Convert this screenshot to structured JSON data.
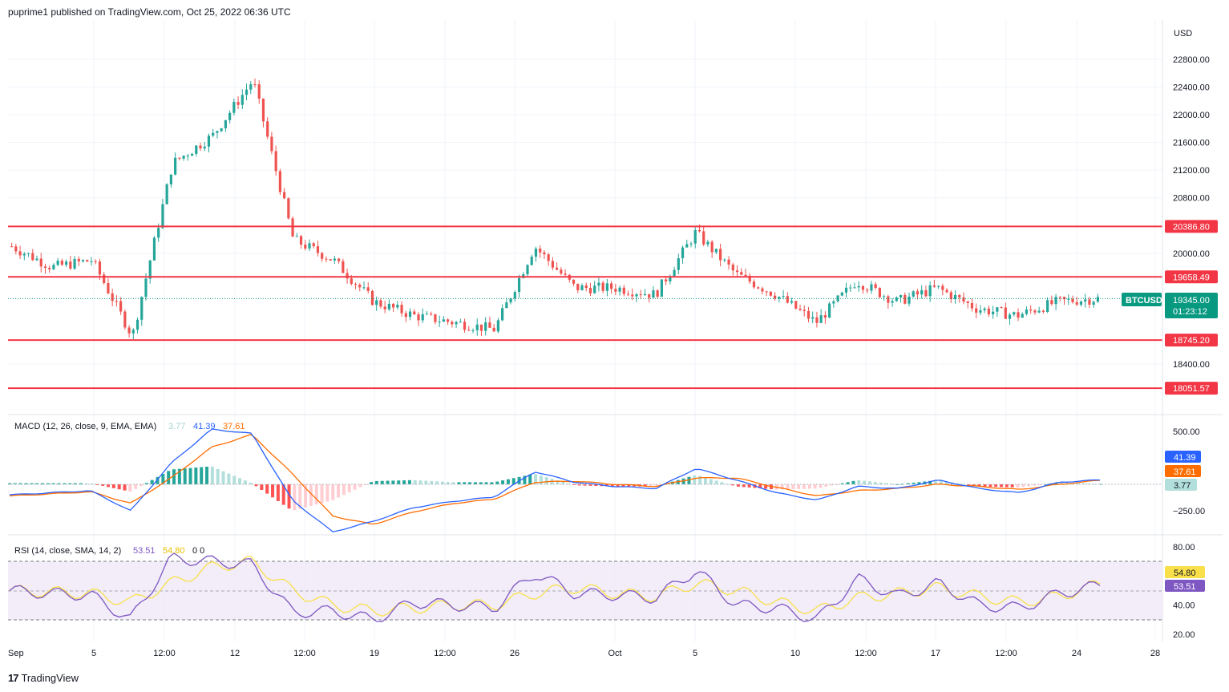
{
  "header": {
    "text": "puprime1 published on TradingView.com, Oct 25, 2022 06:36 UTC"
  },
  "footer": {
    "logo_mark": "17",
    "brand": "TradingView"
  },
  "colors": {
    "up": "#26a69a",
    "down": "#ef5350",
    "level_line": "#f23645",
    "macd_line": "#2962ff",
    "signal_line": "#ff6d00",
    "rsi_line": "#7e57c2",
    "rsi_sma": "#f9e04b",
    "rsi_band": "#ede7f6",
    "price_tag": "#089981"
  },
  "price_axis": {
    "currency": "USD",
    "ticks": [
      "22800.00",
      "22400.00",
      "22000.00",
      "21600.00",
      "21200.00",
      "20800.00",
      "20000.00",
      "18400.00"
    ]
  },
  "levels": [
    {
      "label": "20386.80",
      "value": 20386.8
    },
    {
      "label": "19658.49",
      "value": 19658.49
    },
    {
      "label": "18745.20",
      "value": 18745.2
    },
    {
      "label": "18051.57",
      "value": 18051.57
    }
  ],
  "last_price": {
    "symbol": "BTCUSD",
    "price": "19345.00",
    "countdown": "01:23:12",
    "value": 19345
  },
  "macd": {
    "title": "MACD (12, 26, close, 9, EMA, EMA)",
    "hist_value": "3.77",
    "macd_value": "41.39",
    "signal_value": "37.61",
    "axis_ticks": [
      "500.00",
      "−250.00"
    ]
  },
  "rsi": {
    "title": "RSI (14, close, SMA, 14, 2)",
    "rsi_value": "53.51",
    "sma_value": "54.80",
    "extra": "0  0",
    "axis_ticks": [
      "80.00",
      "40.00",
      "20.00"
    ]
  },
  "time_axis": {
    "labels": [
      "Sep",
      "5",
      "12:00",
      "12",
      "12:00",
      "19",
      "12:00",
      "26",
      "Oct",
      "5",
      "10",
      "12:00",
      "17",
      "12:00",
      "24",
      "28"
    ]
  },
  "chart_data": [
    {
      "type": "candlestick",
      "title": "BTCUSD",
      "ylabel": "USD",
      "ylim": [
        17700,
        23200
      ],
      "x": [
        "Sep 1",
        "Sep 3",
        "Sep 5",
        "Sep 7",
        "Sep 9",
        "Sep 11",
        "Sep 13",
        "Sep 15",
        "Sep 17",
        "Sep 19",
        "Sep 21",
        "Sep 23",
        "Sep 25",
        "Sep 27",
        "Sep 29",
        "Oct 1",
        "Oct 3",
        "Oct 5",
        "Oct 7",
        "Oct 9",
        "Oct 11",
        "Oct 13",
        "Oct 15",
        "Oct 17",
        "Oct 19",
        "Oct 21",
        "Oct 23",
        "Oct 25"
      ],
      "close": [
        20100,
        19800,
        19900,
        18800,
        21300,
        21700,
        22500,
        20200,
        19900,
        19300,
        19100,
        19000,
        18900,
        20100,
        19500,
        19500,
        19400,
        20300,
        19700,
        19400,
        19000,
        19600,
        19300,
        19500,
        19200,
        19100,
        19300,
        19345
      ]
    },
    {
      "type": "line",
      "title": "MACD (12, 26, close, 9, EMA, EMA)",
      "series": [
        {
          "name": "MACD",
          "last": 41.39,
          "values": [
            -100,
            -80,
            -60,
            -250,
            200,
            520,
            480,
            -150,
            -450,
            -350,
            -220,
            -160,
            -120,
            120,
            20,
            -20,
            -40,
            150,
            40,
            -80,
            -150,
            -20,
            -40,
            40,
            -40,
            -80,
            20,
            41.39
          ]
        },
        {
          "name": "Signal",
          "last": 37.61,
          "values": [
            -110,
            -90,
            -70,
            -180,
            60,
            350,
            470,
            100,
            -300,
            -380,
            -260,
            -180,
            -140,
            20,
            30,
            0,
            -20,
            60,
            60,
            -30,
            -110,
            -60,
            -40,
            0,
            -20,
            -50,
            0,
            37.61
          ]
        }
      ],
      "histogram_last": 3.77,
      "ylim": [
        -400,
        600
      ]
    },
    {
      "type": "line",
      "title": "RSI (14, close, SMA, 14, 2)",
      "series": [
        {
          "name": "RSI",
          "last": 53.51,
          "values": [
            50,
            48,
            47,
            30,
            72,
            70,
            68,
            35,
            36,
            30,
            42,
            40,
            38,
            62,
            48,
            47,
            45,
            64,
            40,
            38,
            30,
            58,
            46,
            55,
            40,
            38,
            48,
            53.51
          ]
        },
        {
          "name": "RSI SMA",
          "last": 54.8,
          "values": [
            50,
            49,
            48,
            42,
            55,
            66,
            70,
            50,
            40,
            36,
            38,
            40,
            40,
            48,
            52,
            48,
            46,
            55,
            50,
            42,
            36,
            45,
            48,
            52,
            46,
            42,
            46,
            54.8
          ]
        }
      ],
      "bands": [
        30,
        70
      ],
      "ylim": [
        15,
        85
      ]
    }
  ]
}
